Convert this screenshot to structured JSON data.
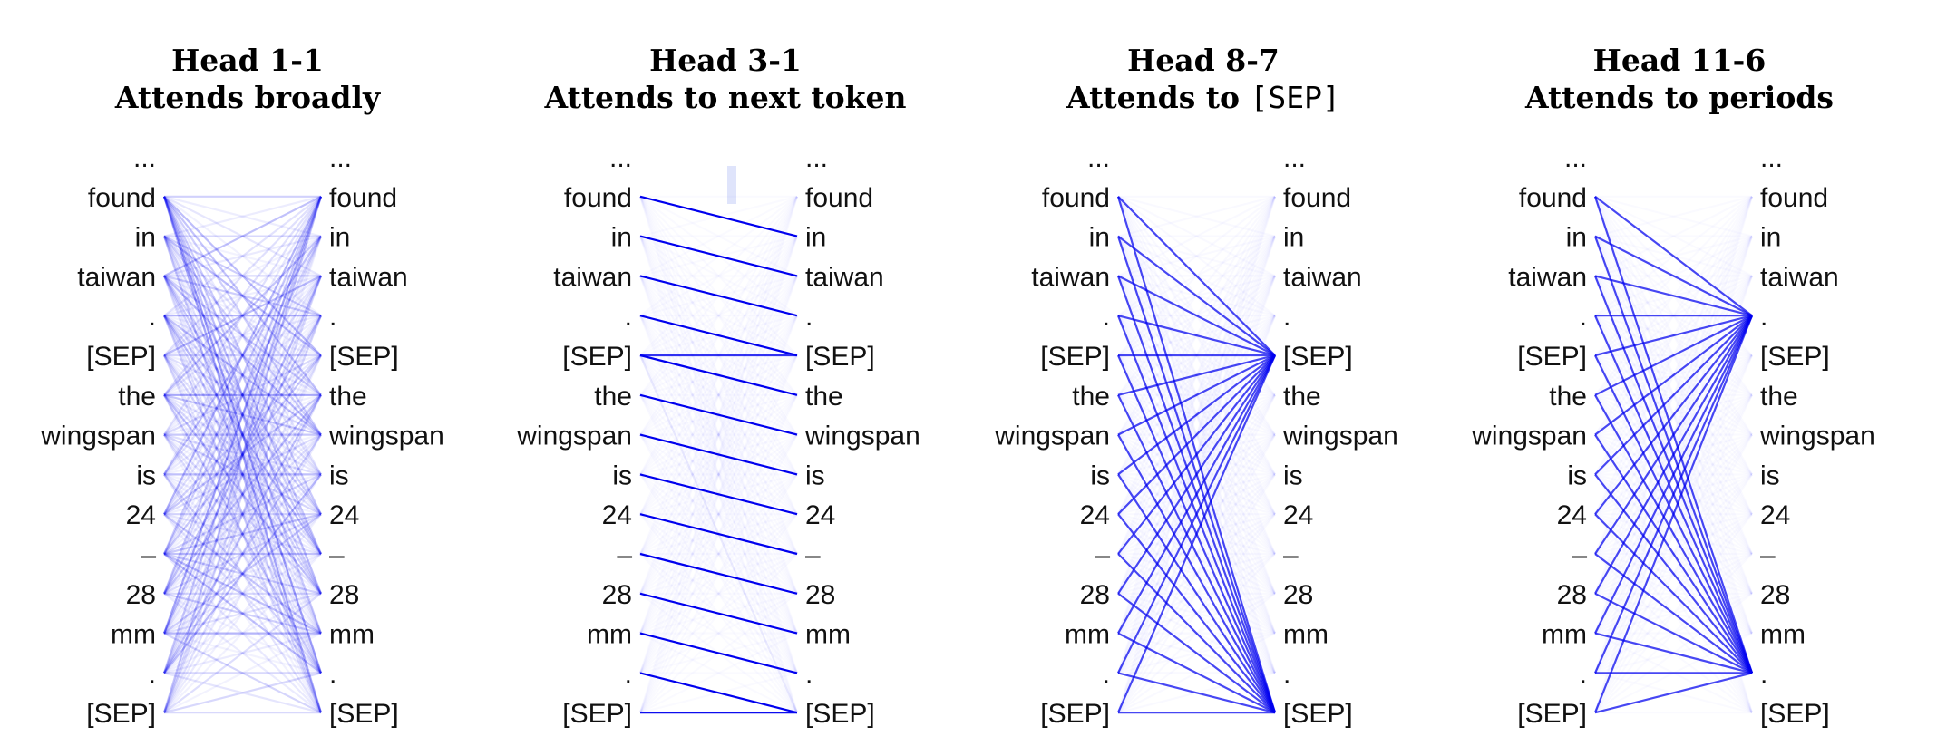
{
  "tokens": [
    "...",
    "found",
    "in",
    "taiwan",
    ".",
    "[SEP]",
    "the",
    "wingspan",
    "is",
    "24",
    "–",
    "28",
    "mm",
    ".",
    "[SEP]"
  ],
  "line_color": "#0000ee",
  "heads": [
    {
      "title_line1": "Head 1-1",
      "title_line2": "Attends broadly",
      "pattern": "broad"
    },
    {
      "title_line1": "Head 3-1",
      "title_line2": "Attends to next token",
      "pattern": "next-token"
    },
    {
      "title_line1": "Head 8-7",
      "title_line2_prefix": "Attends to ",
      "title_line2_code": "[SEP]",
      "pattern": "sep"
    },
    {
      "title_line1": "Head 11-6",
      "title_line2": "Attends to periods",
      "pattern": "periods"
    }
  ]
}
